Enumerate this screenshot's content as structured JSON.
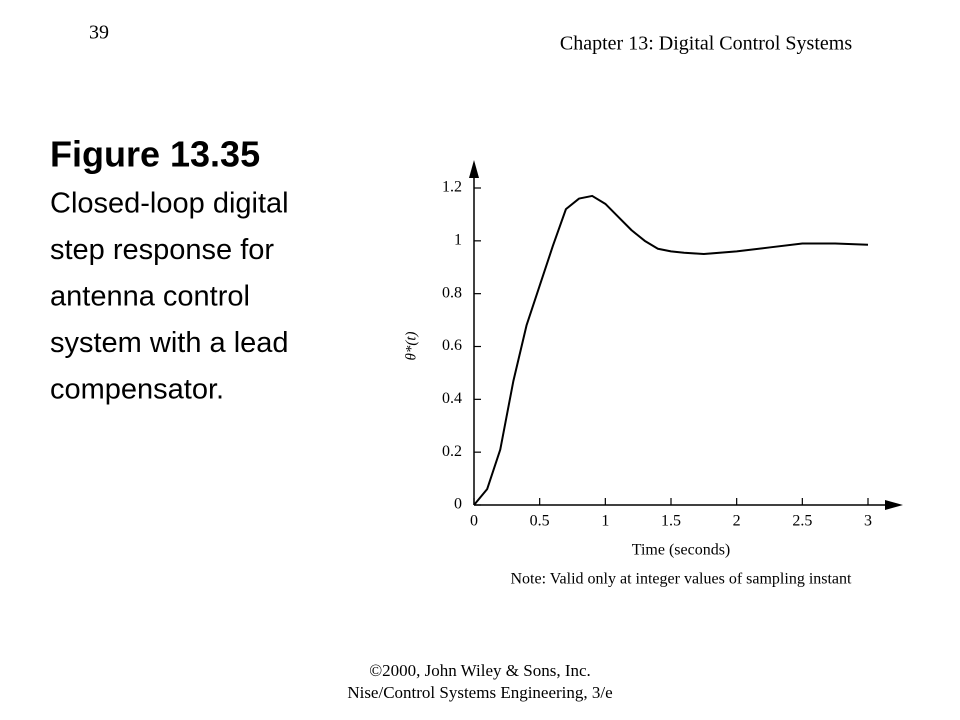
{
  "slide": {
    "page_number": "39",
    "header": "Chapter 13: Digital Control Systems",
    "figure_title": "Figure 13.35",
    "caption_lines": [
      "Closed-loop digital",
      "step response for",
      "antenna control",
      "system with a lead",
      "compensator."
    ],
    "footer_lines": [
      "©2000, John Wiley & Sons, Inc.",
      "Nise/Control Systems Engineering, 3/e"
    ]
  },
  "chart_data": {
    "type": "line",
    "xlabel": "Time (seconds)",
    "ylabel": "θ*(t)",
    "note": "Note: Valid only at integer values of sampling instant",
    "x": [
      0,
      0.1,
      0.2,
      0.3,
      0.4,
      0.5,
      0.6,
      0.7,
      0.8,
      0.9,
      1.0,
      1.1,
      1.2,
      1.3,
      1.4,
      1.5,
      1.6,
      1.75,
      2.0,
      2.25,
      2.5,
      2.75,
      3.0
    ],
    "values": [
      0,
      0.06,
      0.21,
      0.47,
      0.68,
      0.83,
      0.98,
      1.12,
      1.16,
      1.17,
      1.14,
      1.09,
      1.04,
      1.0,
      0.97,
      0.96,
      0.955,
      0.95,
      0.96,
      0.975,
      0.99,
      0.99,
      0.985
    ],
    "color": "#000000",
    "xlim": [
      0,
      3
    ],
    "ylim": [
      0,
      1.2
    ],
    "xticks": [
      0,
      0.5,
      1,
      1.5,
      2,
      2.5,
      3
    ],
    "yticks": [
      0,
      0.2,
      0.4,
      0.6,
      0.8,
      1,
      1.2
    ]
  }
}
